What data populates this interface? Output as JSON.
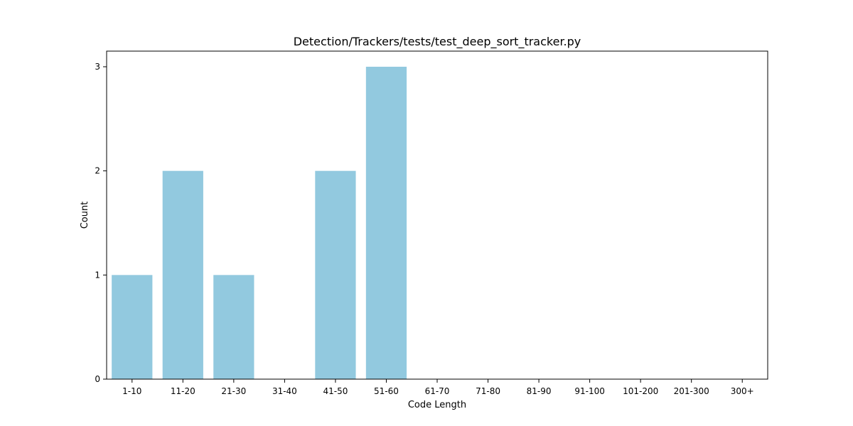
{
  "chart_data": {
    "type": "bar",
    "title": "Detection/Trackers/tests/test_deep_sort_tracker.py",
    "xlabel": "Code Length",
    "ylabel": "Count",
    "categories": [
      "1-10",
      "11-20",
      "21-30",
      "31-40",
      "41-50",
      "51-60",
      "61-70",
      "71-80",
      "81-90",
      "91-100",
      "101-200",
      "201-300",
      "300+"
    ],
    "values": [
      1,
      2,
      1,
      0,
      2,
      3,
      0,
      0,
      0,
      0,
      0,
      0,
      0
    ],
    "yticks": [
      "0",
      "1",
      "2",
      "3"
    ],
    "ylim": [
      0,
      3.15
    ],
    "grid": false,
    "legend": "none",
    "bar_color": "#92c9df"
  }
}
